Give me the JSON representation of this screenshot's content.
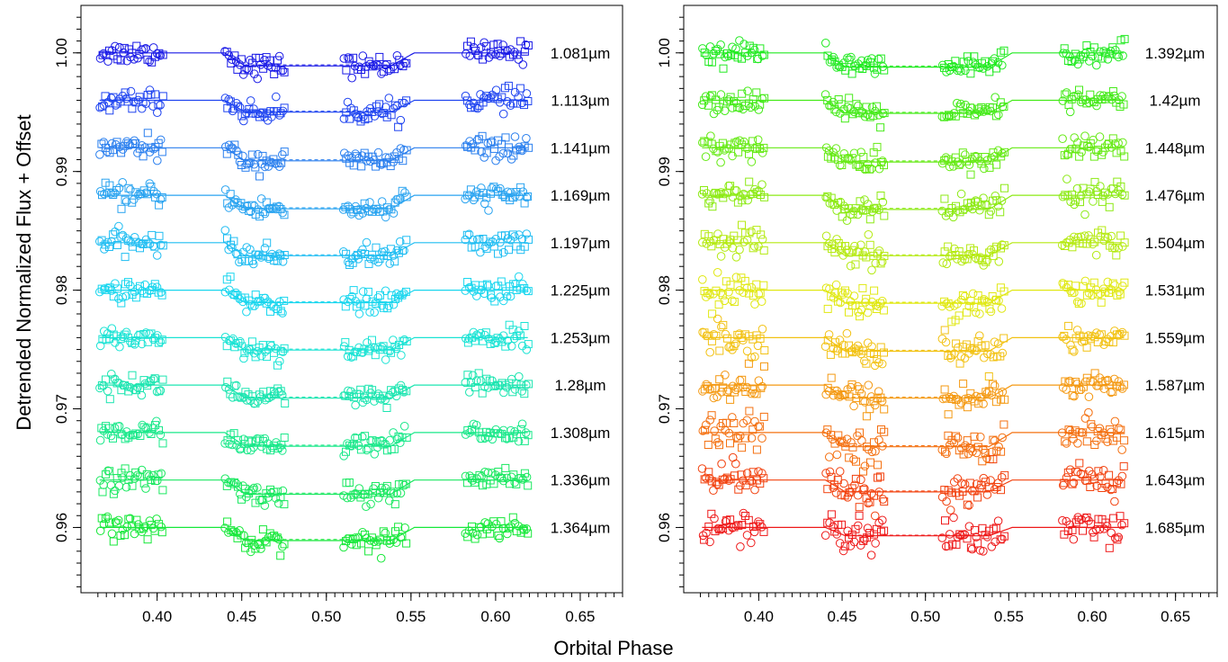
{
  "figure": {
    "ylabel": "Detrended Normalized Flux + Offset",
    "xlabel": "Orbital Phase"
  },
  "chart_data": [
    {
      "type": "scatter",
      "panel": "left",
      "xlim": [
        0.355,
        0.675
      ],
      "ylim": [
        0.9545,
        1.004
      ],
      "xticks": [
        0.4,
        0.45,
        0.5,
        0.55,
        0.6,
        0.65
      ],
      "xtick_labels": [
        "0.40",
        "0.45",
        "0.50",
        "0.55",
        "0.60",
        "0.65"
      ],
      "yticks": [
        0.96,
        0.97,
        0.98,
        0.99,
        1.0
      ],
      "ytick_labels": [
        "0.96",
        "0.97",
        "0.98",
        "0.99",
        "1.00"
      ],
      "grid": false,
      "series": [
        {
          "name": "1.081µm",
          "offset": 1.0,
          "depth": 0.0011,
          "color": "#1a1ae6"
        },
        {
          "name": "1.113µm",
          "offset": 0.996,
          "depth": 0.001,
          "color": "#1f44f0"
        },
        {
          "name": "1.141µm",
          "offset": 0.992,
          "depth": 0.0011,
          "color": "#2a7fee"
        },
        {
          "name": "1.169µm",
          "offset": 0.988,
          "depth": 0.00115,
          "color": "#29a3f0"
        },
        {
          "name": "1.197µm",
          "offset": 0.984,
          "depth": 0.0011,
          "color": "#20bdf2"
        },
        {
          "name": "1.225µm",
          "offset": 0.98,
          "depth": 0.00105,
          "color": "#19d6ee"
        },
        {
          "name": "1.253µm",
          "offset": 0.976,
          "depth": 0.00105,
          "color": "#1ae3d4"
        },
        {
          "name": "1.28µm",
          "offset": 0.972,
          "depth": 0.0011,
          "color": "#1be5b0"
        },
        {
          "name": "1.308µm",
          "offset": 0.968,
          "depth": 0.00115,
          "color": "#1ae88a"
        },
        {
          "name": "1.336µm",
          "offset": 0.964,
          "depth": 0.0012,
          "color": "#1ae860"
        },
        {
          "name": "1.364µm",
          "offset": 0.96,
          "depth": 0.0011,
          "color": "#17e83a"
        }
      ]
    },
    {
      "type": "scatter",
      "panel": "right",
      "xlim": [
        0.355,
        0.675
      ],
      "ylim": [
        0.9545,
        1.004
      ],
      "xticks": [
        0.4,
        0.45,
        0.5,
        0.55,
        0.6,
        0.65
      ],
      "xtick_labels": [
        "0.40",
        "0.45",
        "0.50",
        "0.55",
        "0.60",
        "0.65"
      ],
      "yticks": [
        0.96,
        0.97,
        0.98,
        0.99,
        1.0
      ],
      "ytick_labels": [
        "0.96",
        "0.97",
        "0.98",
        "0.99",
        "1.00"
      ],
      "grid": false,
      "series": [
        {
          "name": "1.392µm",
          "offset": 1.0,
          "depth": 0.0012,
          "color": "#22ea22"
        },
        {
          "name": "1.42µm",
          "offset": 0.996,
          "depth": 0.0011,
          "color": "#44ea18"
        },
        {
          "name": "1.448µm",
          "offset": 0.992,
          "depth": 0.0012,
          "color": "#66ea15"
        },
        {
          "name": "1.476µm",
          "offset": 0.988,
          "depth": 0.0012,
          "color": "#8cea14"
        },
        {
          "name": "1.504µm",
          "offset": 0.984,
          "depth": 0.0011,
          "color": "#b5ea12"
        },
        {
          "name": "1.531µm",
          "offset": 0.98,
          "depth": 0.0011,
          "color": "#e0e812"
        },
        {
          "name": "1.559µm",
          "offset": 0.976,
          "depth": 0.00115,
          "color": "#f2c214"
        },
        {
          "name": "1.587µm",
          "offset": 0.972,
          "depth": 0.0011,
          "color": "#f49912"
        },
        {
          "name": "1.615µm",
          "offset": 0.968,
          "depth": 0.0012,
          "color": "#f47010"
        },
        {
          "name": "1.643µm",
          "offset": 0.964,
          "depth": 0.001,
          "color": "#f2420f"
        },
        {
          "name": "1.685µm",
          "offset": 0.96,
          "depth": 0.0007,
          "color": "#ee1a1a"
        }
      ]
    }
  ]
}
